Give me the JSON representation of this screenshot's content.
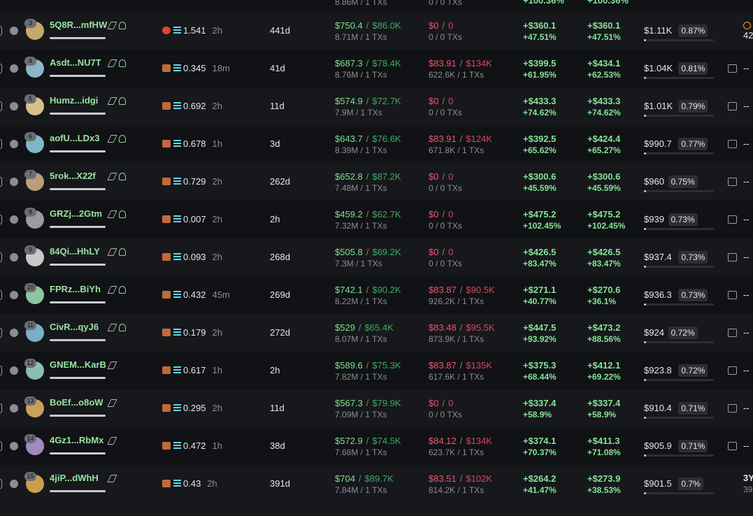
{
  "divider": "/",
  "top_row": {
    "bought_sub": "8.86M / 1 TXs",
    "sold_sub": "0 / 0 TXs",
    "pnl_pct": "+100.36%",
    "unrealized_pct": "+100.36%"
  },
  "rows": [
    {
      "rank": 3,
      "name": "5Q8R...mfHW",
      "balance": 1.541,
      "last_active": "2h",
      "age": "441d",
      "bought_usd": "$750.4",
      "bought_mc": "$86.0K",
      "bought_sub": "8.71M / 1 TXs",
      "sold_usd": "$0",
      "sold_mc": "0",
      "sold_sub": "0 / 0 TXs",
      "pnl": "+$360.1",
      "pnl_pct": "+47.51%",
      "unrealized": "+$360.1",
      "unrealized_pct": "+47.51%",
      "total": "$1.11K",
      "share": "0.87%",
      "last": [
        "42"
      ]
    },
    {
      "rank": 4,
      "name": "Asdt...NU7T",
      "balance": 0.345,
      "last_active": "18m",
      "age": "41d",
      "bought_usd": "$687.3",
      "bought_mc": "$78.4K",
      "bought_sub": "8.76M / 1 TXs",
      "sold_usd": "$83.91",
      "sold_mc": "$134K",
      "sold_sub": "622.6K / 1 TXs",
      "pnl": "+$399.5",
      "pnl_pct": "+61.95%",
      "unrealized": "+$434.1",
      "unrealized_pct": "+62.53%",
      "total": "$1.04K",
      "share": "0.81%",
      "last": [
        "--"
      ]
    },
    {
      "rank": 5,
      "name": "Humz...idgi",
      "balance": 0.692,
      "last_active": "2h",
      "age": "11d",
      "bought_usd": "$574.9",
      "bought_mc": "$72.7K",
      "bought_sub": "7.9M / 1 TXs",
      "sold_usd": "$0",
      "sold_mc": "0",
      "sold_sub": "0 / 0 TXs",
      "pnl": "+$433.3",
      "pnl_pct": "+74.62%",
      "unrealized": "+$433.3",
      "unrealized_pct": "+74.62%",
      "total": "$1.01K",
      "share": "0.79%",
      "last": [
        "--"
      ]
    },
    {
      "rank": 6,
      "name": "aofU...LDx3",
      "balance": 0.678,
      "last_active": "1h",
      "age": "3d",
      "bought_usd": "$643.7",
      "bought_mc": "$76.6K",
      "bought_sub": "8.39M / 1 TXs",
      "sold_usd": "$83.91",
      "sold_mc": "$124K",
      "sold_sub": "671.8K / 1 TXs",
      "pnl": "+$392.5",
      "pnl_pct": "+65.62%",
      "unrealized": "+$424.4",
      "unrealized_pct": "+65.27%",
      "total": "$990.7",
      "share": "0.77%",
      "last": [
        "--"
      ]
    },
    {
      "rank": 7,
      "name": "5rok...X22f",
      "balance": 0.729,
      "last_active": "2h",
      "age": "262d",
      "bought_usd": "$652.8",
      "bought_mc": "$87.2K",
      "bought_sub": "7.48M / 1 TXs",
      "sold_usd": "$0",
      "sold_mc": "0",
      "sold_sub": "0 / 0 TXs",
      "pnl": "+$300.6",
      "pnl_pct": "+45.59%",
      "unrealized": "+$300.6",
      "unrealized_pct": "+45.59%",
      "total": "$960",
      "share": "0.75%",
      "last": [
        "--"
      ]
    },
    {
      "rank": 8,
      "name": "GRZj...2Gtm",
      "balance": 0.007,
      "last_active": "2h",
      "age": "2h",
      "bought_usd": "$459.2",
      "bought_mc": "$62.7K",
      "bought_sub": "7.32M / 1 TXs",
      "sold_usd": "$0",
      "sold_mc": "0",
      "sold_sub": "0 / 0 TXs",
      "pnl": "+$475.2",
      "pnl_pct": "+102.45%",
      "unrealized": "+$475.2",
      "unrealized_pct": "+102.45%",
      "total": "$939",
      "share": "0.73%",
      "last": [
        "--"
      ]
    },
    {
      "rank": 9,
      "name": "84Qi...HhLY",
      "balance": 0.093,
      "last_active": "2h",
      "age": "268d",
      "bought_usd": "$505.8",
      "bought_mc": "$69.2K",
      "bought_sub": "7.3M / 1 TXs",
      "sold_usd": "$0",
      "sold_mc": "0",
      "sold_sub": "0 / 0 TXs",
      "pnl": "+$426.5",
      "pnl_pct": "+83.47%",
      "unrealized": "+$426.5",
      "unrealized_pct": "+83.47%",
      "total": "$937.4",
      "share": "0.73%",
      "last": [
        "--"
      ]
    },
    {
      "rank": 10,
      "name": "FPRz...BiYh",
      "balance": 0.432,
      "last_active": "45m",
      "age": "269d",
      "bought_usd": "$742.1",
      "bought_mc": "$90.2K",
      "bought_sub": "8.22M / 1 TXs",
      "sold_usd": "$83.87",
      "sold_mc": "$90.5K",
      "sold_sub": "926.2K / 1 TXs",
      "pnl": "+$271.1",
      "pnl_pct": "+40.77%",
      "unrealized": "+$270.6",
      "unrealized_pct": "+36.1%",
      "total": "$936.3",
      "share": "0.73%",
      "last": [
        "--"
      ]
    },
    {
      "rank": 11,
      "name": "CivR...qyJ6",
      "balance": 0.179,
      "last_active": "2h",
      "age": "272d",
      "bought_usd": "$529",
      "bought_mc": "$65.4K",
      "bought_sub": "8.07M / 1 TXs",
      "sold_usd": "$83.48",
      "sold_mc": "$95.5K",
      "sold_sub": "873.9K / 1 TXs",
      "pnl": "+$447.5",
      "pnl_pct": "+93.92%",
      "unrealized": "+$473.2",
      "unrealized_pct": "+88.56%",
      "total": "$924",
      "share": "0.72%",
      "last": [
        "--"
      ]
    },
    {
      "rank": 12,
      "name": "GNEM...KarB",
      "balance": 0.617,
      "last_active": "1h",
      "age": "2h",
      "bought_usd": "$589.6",
      "bought_mc": "$75.3K",
      "bought_sub": "7.82M / 1 TXs",
      "sold_usd": "$83.87",
      "sold_mc": "$135K",
      "sold_sub": "617.6K / 1 TXs",
      "pnl": "+$375.3",
      "pnl_pct": "+68.44%",
      "unrealized": "+$412.1",
      "unrealized_pct": "+69.22%",
      "total": "$923.8",
      "share": "0.72%",
      "last": [
        "--"
      ]
    },
    {
      "rank": 13,
      "name": "BoEf...o8oW",
      "balance": 0.295,
      "last_active": "2h",
      "age": "11d",
      "bought_usd": "$567.3",
      "bought_mc": "$79.9K",
      "bought_sub": "7.09M / 1 TXs",
      "sold_usd": "$0",
      "sold_mc": "0",
      "sold_sub": "0 / 0 TXs",
      "pnl": "+$337.4",
      "pnl_pct": "+58.9%",
      "unrealized": "+$337.4",
      "unrealized_pct": "+58.9%",
      "total": "$910.4",
      "share": "0.71%",
      "last": [
        "--"
      ]
    },
    {
      "rank": 14,
      "name": "4Gz1...RbMx",
      "balance": 0.472,
      "last_active": "1h",
      "age": "38d",
      "bought_usd": "$572.9",
      "bought_mc": "$74.5K",
      "bought_sub": "7.68M / 1 TXs",
      "sold_usd": "$84.12",
      "sold_mc": "$134K",
      "sold_sub": "623.7K / 1 TXs",
      "pnl": "+$374.1",
      "pnl_pct": "+70.37%",
      "unrealized": "+$411.3",
      "unrealized_pct": "+71.08%",
      "total": "$905.9",
      "share": "0.71%",
      "last": [
        "--"
      ]
    },
    {
      "rank": 15,
      "name": "4jiP...dWhH",
      "balance": 0.43,
      "last_active": "2h",
      "age": "391d",
      "bought_usd": "$704",
      "bought_mc": "$89.7K",
      "bought_sub": "7.84M / 1 TXs",
      "sold_usd": "$83.51",
      "sold_mc": "$102K",
      "sold_sub": "814.2K / 1 TXs",
      "pnl": "+$264.2",
      "pnl_pct": "+41.47%",
      "unrealized": "+$273.9",
      "unrealized_pct": "+38.53%",
      "total": "$901.5",
      "share": "0.7%",
      "last": [
        "3Y",
        "39"
      ]
    }
  ]
}
